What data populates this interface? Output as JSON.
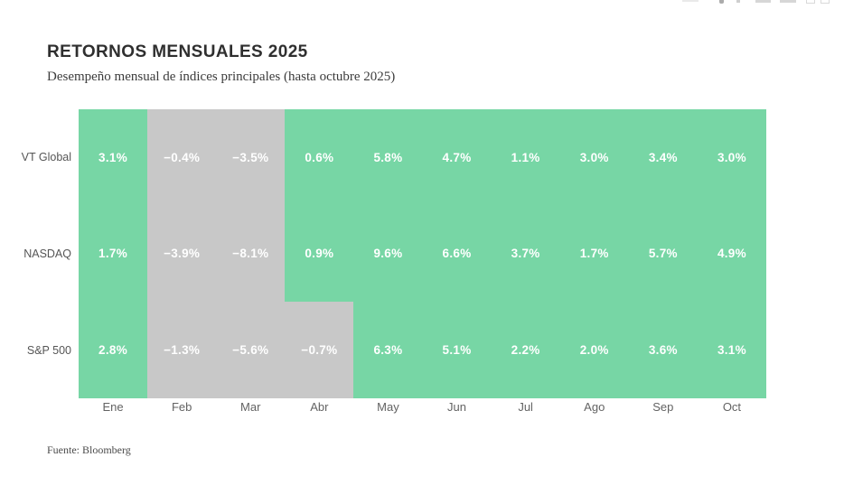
{
  "header": {
    "title": "RETORNOS MENSUALES 2025",
    "subtitle": "Desempeño mensual de índices principales (hasta octubre 2025)"
  },
  "footer": {
    "source": "Fuente: Bloomberg"
  },
  "modebar": {
    "icons": [
      "camera-icon",
      "zoom-icon",
      "pan-icon",
      "zoom-in-icon",
      "zoom-out-icon",
      "autoscale-icon",
      "reset-axes-icon"
    ]
  },
  "chart_data": {
    "type": "heatmap",
    "title": "RETORNOS MENSUALES 2025",
    "subtitle": "Desempeño mensual de índices principales (hasta octubre 2025)",
    "categories": [
      "Ene",
      "Feb",
      "Mar",
      "Abr",
      "May",
      "Jun",
      "Jul",
      "Ago",
      "Sep",
      "Oct"
    ],
    "series": [
      {
        "name": "VT Global",
        "values": [
          3.1,
          -0.4,
          -3.5,
          0.6,
          5.8,
          4.7,
          1.1,
          3.0,
          3.4,
          3.0
        ]
      },
      {
        "name": "NASDAQ",
        "values": [
          1.7,
          -3.9,
          -8.1,
          0.9,
          9.6,
          6.6,
          3.7,
          1.7,
          5.7,
          4.9
        ]
      },
      {
        "name": "S&P 500",
        "values": [
          2.8,
          -1.3,
          -5.6,
          -0.7,
          6.3,
          5.1,
          2.2,
          2.0,
          3.6,
          3.1
        ]
      }
    ],
    "value_suffix": "%",
    "value_decimals": 1,
    "colors": {
      "positive": "#77d6a5",
      "negative": "#c8c8c8",
      "cell_text": "#ffffff"
    },
    "legend": "none",
    "grid": false,
    "source": "Fuente: Bloomberg"
  }
}
